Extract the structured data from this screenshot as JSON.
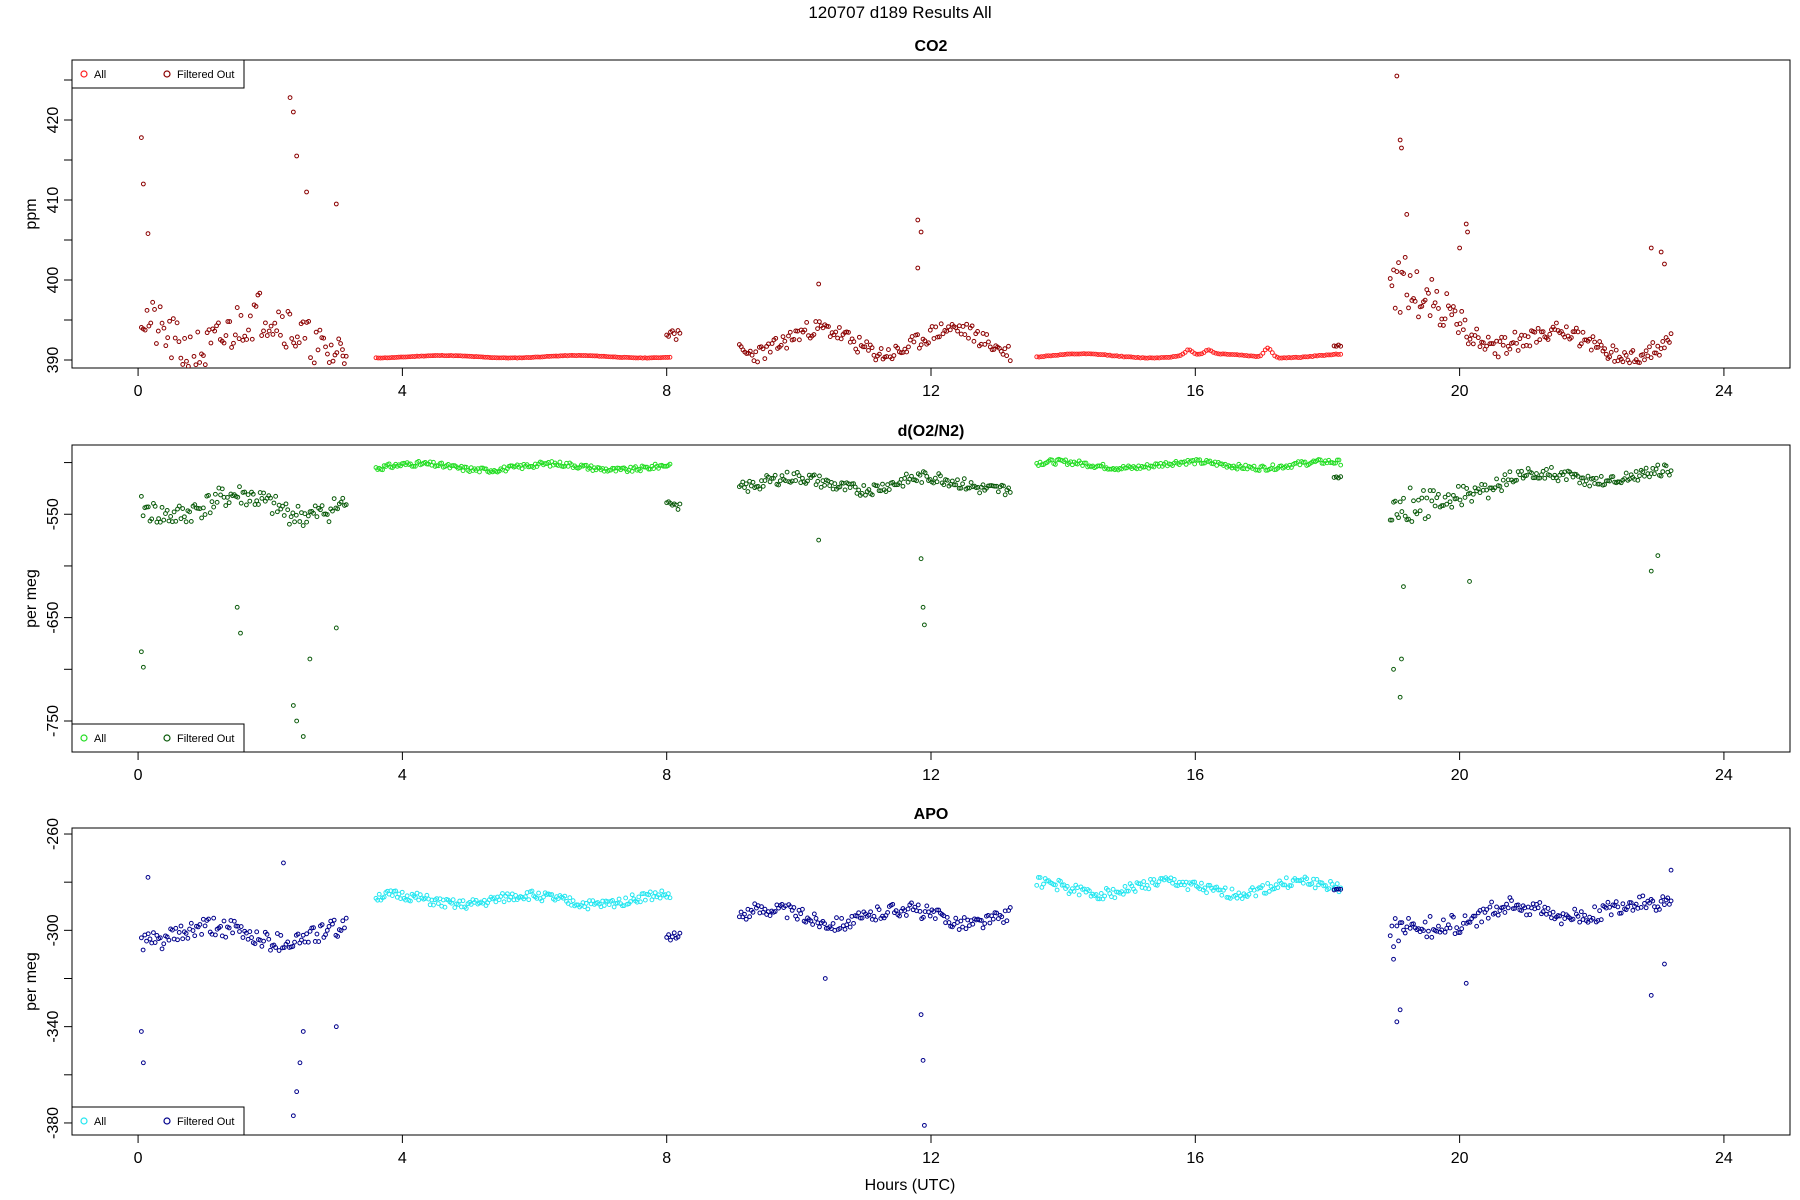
{
  "main_title": "120707   d189   Results All",
  "x_axis_label": "Hours (UTC)",
  "colors": {
    "co2_all": "#ff2020",
    "co2_filtered": "#8b0000",
    "o2n2_all": "#22dd22",
    "o2n2_filtered": "#0a5a0a",
    "apo_all": "#22e6f0",
    "apo_filtered": "#00008b"
  },
  "chart_data": [
    {
      "type": "scatter",
      "title": "CO2",
      "ylabel": "ppm",
      "xlabel": "",
      "xlim": [
        -1.0,
        25.0
      ],
      "ylim": [
        389.0,
        427.5
      ],
      "xticks": [
        0,
        4,
        8,
        12,
        16,
        20,
        24
      ],
      "yticks": [
        390,
        400,
        410,
        420
      ],
      "legend_placement": "top-left",
      "grid": false,
      "series": [
        {
          "name": "All",
          "color": "#ff2020",
          "segments": [
            {
              "x": [
                3.6,
                8.05
              ],
              "base": 390.4,
              "amp": 0.15,
              "noise": 0.05,
              "seed": 11,
              "n": 130
            },
            {
              "x": [
                13.6,
                18.2
              ],
              "base": 390.5,
              "amp": 0.25,
              "noise": 0.08,
              "seed": 12,
              "n": 130,
              "peaks": [
                [
                  15.9,
                  0.7
                ],
                [
                  16.2,
                  0.5
                ],
                [
                  17.1,
                  1.2
                ]
              ]
            }
          ]
        },
        {
          "name": "Filtered Out",
          "color": "#8b0000",
          "segments": [
            {
              "x": [
                0.05,
                3.15
              ],
              "base": 392.5,
              "amp": 2.5,
              "noise": 6.0,
              "seed": 21,
              "n": 110,
              "extras": [
                [
                  0.05,
                  417.8
                ],
                [
                  0.08,
                  412.0
                ],
                [
                  0.15,
                  405.8
                ],
                [
                  2.3,
                  422.8
                ],
                [
                  2.35,
                  421.0
                ],
                [
                  2.4,
                  415.5
                ],
                [
                  2.55,
                  411.0
                ],
                [
                  3.0,
                  409.5
                ],
                [
                  3.1,
                  390.5
                ]
              ]
            },
            {
              "x": [
                8.0,
                8.2
              ],
              "base": 393.5,
              "amp": 1.0,
              "noise": 1.5,
              "seed": 22,
              "n": 8
            },
            {
              "x": [
                9.1,
                13.2
              ],
              "base": 392.0,
              "amp": 1.6,
              "noise": 2.2,
              "seed": 23,
              "n": 150,
              "extras": [
                [
                  10.3,
                  399.5
                ],
                [
                  11.8,
                  407.5
                ],
                [
                  11.85,
                  406.0
                ],
                [
                  11.8,
                  401.5
                ]
              ]
            },
            {
              "x": [
                18.1,
                18.2
              ],
              "base": 392.0,
              "amp": 0.5,
              "noise": 0.5,
              "seed": 24,
              "n": 4
            },
            {
              "x": [
                18.95,
                23.2
              ],
              "base": 391.3,
              "amp": 1.2,
              "noise": 2.2,
              "seed": 25,
              "n": 170,
              "decay": [
                10.0,
                0.9
              ],
              "extras": [
                [
                  19.05,
                  425.5
                ],
                [
                  19.1,
                  417.5
                ],
                [
                  19.12,
                  416.5
                ],
                [
                  19.2,
                  408.2
                ],
                [
                  20.1,
                  407.0
                ],
                [
                  20.12,
                  406.0
                ],
                [
                  20.0,
                  404.0
                ],
                [
                  22.9,
                  404.0
                ],
                [
                  23.05,
                  403.5
                ],
                [
                  23.1,
                  402.0
                ]
              ]
            }
          ]
        }
      ]
    },
    {
      "type": "scatter",
      "title": "d(O2/N2)",
      "ylabel": "per meg",
      "xlabel": "",
      "xlim": [
        -1.0,
        25.0
      ],
      "ylim": [
        -780,
        -483
      ],
      "xticks": [
        0,
        4,
        8,
        12,
        16,
        20,
        24
      ],
      "yticks": [
        -750,
        -650,
        -550
      ],
      "legend_placement": "bottom-left",
      "grid": false,
      "series": [
        {
          "name": "All",
          "color": "#22dd22",
          "segments": [
            {
              "x": [
                3.6,
                8.05
              ],
              "base": -505.0,
              "amp": 3.0,
              "noise": 5.0,
              "seed": 31,
              "n": 180
            },
            {
              "x": [
                13.6,
                18.2
              ],
              "base": -503.0,
              "amp": 3.0,
              "noise": 5.0,
              "seed": 32,
              "n": 180
            }
          ]
        },
        {
          "name": "Filtered Out",
          "color": "#0a5a0a",
          "segments": [
            {
              "x": [
                0.05,
                3.15
              ],
              "base": -545.0,
              "amp": 10.0,
              "noise": 22.0,
              "seed": 41,
              "n": 120,
              "extras": [
                [
                  0.05,
                  -683.0
                ],
                [
                  0.08,
                  -698.0
                ],
                [
                  2.35,
                  -735.0
                ],
                [
                  2.4,
                  -750.0
                ],
                [
                  2.5,
                  -765.0
                ],
                [
                  2.6,
                  -690.0
                ],
                [
                  3.0,
                  -660.0
                ],
                [
                  1.5,
                  -640.0
                ],
                [
                  1.55,
                  -665.0
                ]
              ]
            },
            {
              "x": [
                8.0,
                8.2
              ],
              "base": -538.0,
              "amp": 5.0,
              "noise": 8.0,
              "seed": 42,
              "n": 8
            },
            {
              "x": [
                9.1,
                13.2
              ],
              "base": -522.0,
              "amp": 6.0,
              "noise": 12.0,
              "seed": 43,
              "n": 160,
              "extras": [
                [
                  11.85,
                  -593.0
                ],
                [
                  11.88,
                  -640.0
                ],
                [
                  11.9,
                  -657.0
                ],
                [
                  10.3,
                  -575.0
                ]
              ]
            },
            {
              "x": [
                18.1,
                18.2
              ],
              "base": -515.0,
              "amp": 3.0,
              "noise": 4.0,
              "seed": 44,
              "n": 4
            },
            {
              "x": [
                18.95,
                23.2
              ],
              "base": -513.0,
              "amp": 5.0,
              "noise": 12.0,
              "seed": 45,
              "n": 170,
              "decay": [
                -60.0,
                0.9
              ],
              "extras": [
                [
                  19.1,
                  -727.0
                ],
                [
                  19.12,
                  -690.0
                ],
                [
                  19.0,
                  -700.0
                ],
                [
                  19.15,
                  -620.0
                ],
                [
                  20.15,
                  -615.0
                ],
                [
                  22.9,
                  -605.0
                ],
                [
                  23.0,
                  -590.0
                ]
              ]
            }
          ]
        }
      ]
    },
    {
      "type": "scatter",
      "title": "APO",
      "ylabel": "per meg",
      "xlabel": "",
      "xlim": [
        -1.0,
        25.0
      ],
      "ylim": [
        -385.0,
        -257.5
      ],
      "xticks": [
        0,
        4,
        8,
        12,
        16,
        20,
        24
      ],
      "yticks": [
        -380,
        -340,
        -300,
        -260
      ],
      "legend_placement": "bottom-left",
      "grid": false,
      "series": [
        {
          "name": "All",
          "color": "#22e6f0",
          "segments": [
            {
              "x": [
                3.6,
                8.05
              ],
              "base": -288.0,
              "amp": 2.0,
              "noise": 4.0,
              "seed": 51,
              "n": 180
            },
            {
              "x": [
                13.6,
                18.2
              ],
              "base": -283.0,
              "amp": 2.5,
              "noise": 4.5,
              "seed": 52,
              "n": 180
            }
          ]
        },
        {
          "name": "Filtered Out",
          "color": "#00008b",
          "segments": [
            {
              "x": [
                0.05,
                3.15
              ],
              "base": -303.0,
              "amp": 3.0,
              "noise": 8.0,
              "seed": 61,
              "n": 120,
              "extras": [
                [
                  0.05,
                  -342.0
                ],
                [
                  0.08,
                  -355.0
                ],
                [
                  0.15,
                  -278.0
                ],
                [
                  2.2,
                  -272.0
                ],
                [
                  2.35,
                  -377.0
                ],
                [
                  2.4,
                  -367.0
                ],
                [
                  2.45,
                  -355.0
                ],
                [
                  2.5,
                  -342.0
                ],
                [
                  3.0,
                  -340.0
                ]
              ]
            },
            {
              "x": [
                8.0,
                8.2
              ],
              "base": -302.0,
              "amp": 2.0,
              "noise": 3.0,
              "seed": 62,
              "n": 8
            },
            {
              "x": [
                9.1,
                13.2
              ],
              "base": -295.0,
              "amp": 3.0,
              "noise": 6.0,
              "seed": 63,
              "n": 160,
              "extras": [
                [
                  11.85,
                  -335.0
                ],
                [
                  11.88,
                  -354.0
                ],
                [
                  11.9,
                  -381.0
                ],
                [
                  10.4,
                  -320.0
                ]
              ]
            },
            {
              "x": [
                18.1,
                18.2
              ],
              "base": -284.0,
              "amp": 1.0,
              "noise": 1.0,
              "seed": 64,
              "n": 4
            },
            {
              "x": [
                18.95,
                23.2
              ],
              "base": -292.0,
              "amp": 3.0,
              "noise": 7.0,
              "seed": 65,
              "n": 170,
              "decay": [
                -15.0,
                0.9
              ],
              "extras": [
                [
                  19.05,
                  -338.0
                ],
                [
                  19.1,
                  -333.0
                ],
                [
                  19.0,
                  -312.0
                ],
                [
                  20.1,
                  -322.0
                ],
                [
                  22.9,
                  -327.0
                ],
                [
                  23.1,
                  -314.0
                ],
                [
                  23.2,
                  -275.0
                ]
              ]
            }
          ]
        }
      ]
    }
  ]
}
